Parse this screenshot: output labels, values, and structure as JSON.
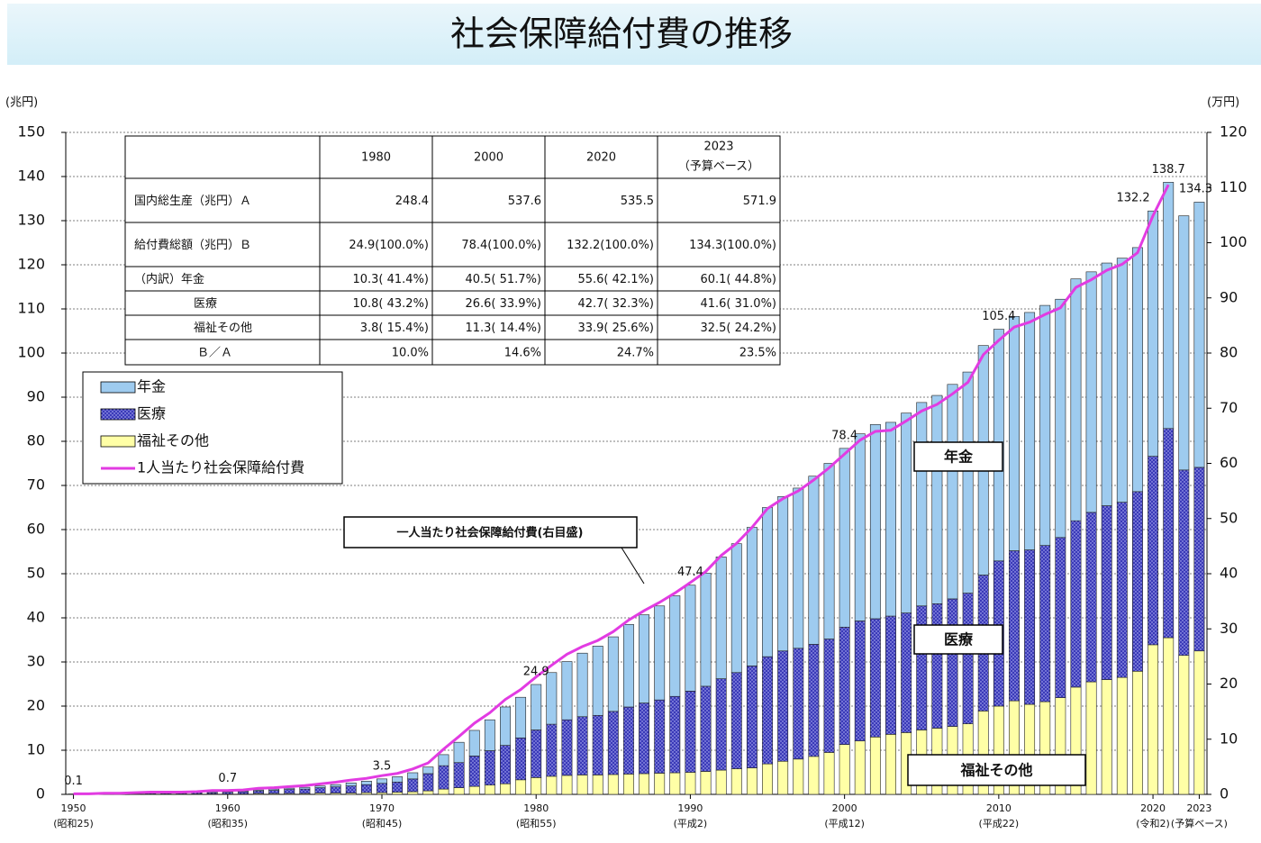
{
  "chart_data": {
    "type": "bar",
    "title": "社会保障給付費の推移",
    "y_unit": "(兆円)",
    "y2_unit": "(万円)",
    "x": [
      1950,
      1951,
      1952,
      1953,
      1954,
      1955,
      1956,
      1957,
      1958,
      1959,
      1960,
      1961,
      1962,
      1963,
      1964,
      1965,
      1966,
      1967,
      1968,
      1969,
      1970,
      1971,
      1972,
      1973,
      1974,
      1975,
      1976,
      1977,
      1978,
      1979,
      1980,
      1981,
      1982,
      1983,
      1984,
      1985,
      1986,
      1987,
      1988,
      1989,
      1990,
      1991,
      1992,
      1993,
      1994,
      1995,
      1996,
      1997,
      1998,
      1999,
      2000,
      2001,
      2002,
      2003,
      2004,
      2005,
      2006,
      2007,
      2008,
      2009,
      2010,
      2011,
      2012,
      2013,
      2014,
      2015,
      2016,
      2017,
      2018,
      2019,
      2020,
      2021,
      2022,
      2023
    ],
    "xlim": [
      1949.5,
      2023.5
    ],
    "xticks": [
      1950,
      1960,
      1970,
      1980,
      1990,
      2000,
      2010,
      2020,
      2023
    ],
    "xtick_era_labels": [
      "(昭和25)",
      "(昭和35)",
      "(昭和45)",
      "(昭和55)",
      "(平成2)",
      "(平成12)",
      "(平成22)",
      "(令和2)",
      "(予算ベース)"
    ],
    "ylim": [
      0,
      150
    ],
    "yticks": [
      0,
      10,
      20,
      30,
      40,
      50,
      60,
      70,
      80,
      90,
      100,
      110,
      120,
      130,
      140,
      150
    ],
    "y2lim": [
      0,
      120
    ],
    "y2ticks": [
      0,
      10,
      20,
      30,
      40,
      50,
      60,
      70,
      80,
      90,
      100,
      110,
      120
    ],
    "grid": true,
    "stacked": true,
    "series": [
      {
        "name": "年金",
        "color": "#9ecbef",
        "values": [
          0,
          0,
          0,
          0,
          0,
          0.1,
          0.1,
          0.1,
          0.1,
          0.2,
          0.2,
          0.2,
          0.2,
          0.3,
          0.3,
          0.4,
          0.4,
          0.5,
          0.7,
          0.8,
          1.0,
          1.2,
          1.4,
          1.5,
          2.5,
          4.6,
          5.8,
          7.0,
          8.7,
          9.2,
          10.3,
          11.7,
          13.2,
          14.4,
          15.7,
          16.9,
          18.7,
          20.0,
          21.3,
          22.8,
          24.0,
          25.6,
          27.6,
          29.2,
          31.4,
          33.8,
          35.0,
          36.3,
          38.1,
          39.8,
          40.5,
          42.4,
          44.0,
          43.9,
          45.3,
          46.1,
          47.2,
          48.6,
          50.1,
          52.0,
          52.5,
          53.1,
          53.8,
          54.4,
          54.0,
          54.8,
          54.5,
          55.0,
          55.3,
          55.3,
          55.6,
          55.8,
          57.6,
          60.1
        ]
      },
      {
        "name": "医療",
        "color": "#3a3ab8",
        "values": [
          0.1,
          0.1,
          0.1,
          0.1,
          0.2,
          0.2,
          0.2,
          0.2,
          0.3,
          0.3,
          0.4,
          0.5,
          0.6,
          0.7,
          0.9,
          1.0,
          1.2,
          1.4,
          1.6,
          1.8,
          2.1,
          2.3,
          2.9,
          3.9,
          5.3,
          5.7,
          6.9,
          7.8,
          8.7,
          9.5,
          10.8,
          11.8,
          12.6,
          13.2,
          13.5,
          14.3,
          15.2,
          16.0,
          16.6,
          17.3,
          18.4,
          19.3,
          20.7,
          21.8,
          23.1,
          24.3,
          25.0,
          25.1,
          25.4,
          25.7,
          26.6,
          27.2,
          26.8,
          26.8,
          27.1,
          28.1,
          28.2,
          28.9,
          29.6,
          30.8,
          32.9,
          34.0,
          35.0,
          35.4,
          36.3,
          37.7,
          38.4,
          39.4,
          39.7,
          40.7,
          42.7,
          47.4,
          42.0,
          41.6
        ]
      },
      {
        "name": "福祉その他",
        "color": "#ffffa6",
        "values": [
          0,
          0,
          0.1,
          0.1,
          0.1,
          0.1,
          0.1,
          0.1,
          0.1,
          0.1,
          0.1,
          0.1,
          0.2,
          0.2,
          0.2,
          0.2,
          0.3,
          0.3,
          0.3,
          0.4,
          0.4,
          0.5,
          0.6,
          0.8,
          1.2,
          1.5,
          1.8,
          2.1,
          2.4,
          3.3,
          3.8,
          4.1,
          4.3,
          4.4,
          4.4,
          4.5,
          4.6,
          4.7,
          4.8,
          4.9,
          5.0,
          5.2,
          5.5,
          5.8,
          6.0,
          6.9,
          7.5,
          8.0,
          8.6,
          9.5,
          11.3,
          12.1,
          13.0,
          13.6,
          14.0,
          14.6,
          15.0,
          15.4,
          16.0,
          18.9,
          20.0,
          21.2,
          20.4,
          21.0,
          21.9,
          24.3,
          25.5,
          26.0,
          26.5,
          27.9,
          33.9,
          35.5,
          31.5,
          32.5
        ]
      },
      {
        "name": "1人当たり社会保障給付費",
        "type": "line",
        "axis": "y2",
        "color": "#e23be2",
        "values": [
          0.1,
          0.1,
          0.2,
          0.2,
          0.3,
          0.4,
          0.4,
          0.4,
          0.5,
          0.7,
          0.7,
          0.8,
          1.1,
          1.2,
          1.4,
          1.6,
          1.9,
          2.2,
          2.6,
          2.9,
          3.4,
          3.8,
          4.6,
          5.7,
          8.2,
          10.5,
          12.9,
          14.8,
          17.2,
          19.0,
          21.3,
          23.4,
          25.4,
          26.8,
          27.9,
          29.5,
          31.6,
          33.3,
          34.8,
          36.5,
          38.4,
          40.4,
          43.3,
          45.5,
          48.4,
          51.8,
          53.6,
          55.0,
          57.0,
          59.2,
          61.7,
          64.2,
          65.8,
          66.0,
          67.7,
          69.5,
          70.7,
          72.6,
          74.7,
          79.7,
          82.3,
          84.7,
          85.6,
          87.0,
          88.2,
          91.9,
          93.3,
          95.0,
          96.1,
          98.2,
          104.9,
          110.5,
          null,
          null
        ]
      }
    ],
    "total_labels": {
      "x": [
        1950,
        1960,
        1970,
        1980,
        1990,
        2000,
        2010,
        2020,
        2021,
        2023
      ],
      "values": [
        0.1,
        0.7,
        3.5,
        24.9,
        47.4,
        78.4,
        105.4,
        132.2,
        138.7,
        134.3
      ]
    },
    "callout": "一人当たり社会保障給付費(右目盛)",
    "table": {
      "header": [
        null,
        "1980",
        "2000",
        "2020",
        [
          "2023",
          "（予算ベース）"
        ]
      ],
      "rows": [
        [
          "国内総生産（兆円）Ａ",
          "248.4",
          "537.6",
          "535.5",
          "571.9"
        ],
        [
          "給付費総額（兆円）Ｂ",
          "24.9(100.0%)",
          "78.4(100.0%)",
          "132.2(100.0%)",
          "134.3(100.0%)"
        ],
        [
          "（内訳）年金",
          "10.3( 41.4%)",
          "40.5( 51.7%)",
          "55.6( 42.1%)",
          "60.1( 44.8%)"
        ],
        [
          "医療",
          "10.8( 43.2%)",
          "26.6( 33.9%)",
          "42.7( 32.3%)",
          "41.6( 31.0%)"
        ],
        [
          "福祉その他",
          "3.8( 15.4%)",
          "11.3( 14.4%)",
          "33.9( 25.6%)",
          "32.5( 24.2%)"
        ],
        [
          "Ｂ／Ａ",
          "10.0%",
          "14.6%",
          "24.7%",
          "23.5%"
        ]
      ]
    }
  }
}
